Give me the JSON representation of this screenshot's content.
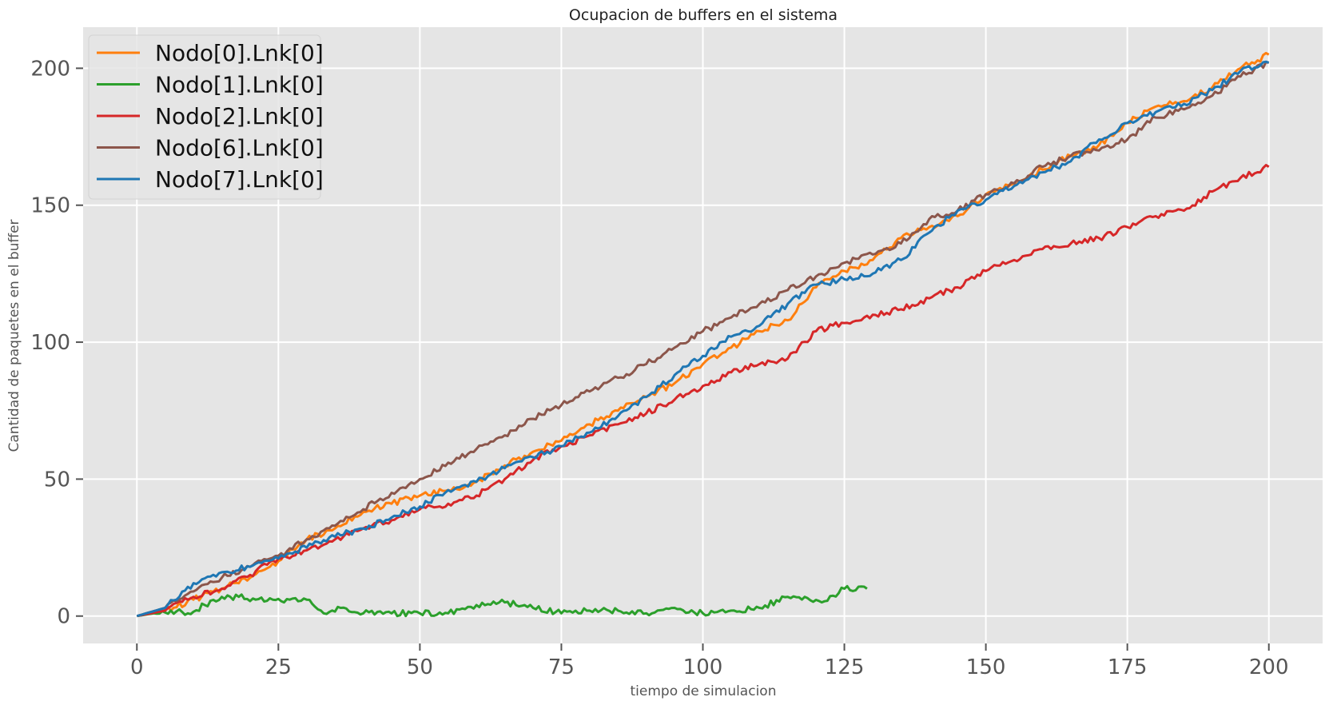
{
  "chart_data": {
    "type": "line",
    "title": "Ocupacion de buffers en el sistema",
    "xlabel": "tiempo de simulacion",
    "ylabel": "Cantidad de paquetes en el buffer",
    "xlim": [
      -9.5,
      209.5
    ],
    "ylim": [
      -10,
      215
    ],
    "xticks": [
      0,
      25,
      50,
      75,
      100,
      125,
      150,
      175,
      200
    ],
    "yticks": [
      0,
      50,
      100,
      150,
      200
    ],
    "grid": true,
    "legend_position": "upper-left",
    "colors": {
      "background": "#e5e5e5",
      "grid": "#ffffff"
    },
    "series": [
      {
        "name": "Nodo[0].Lnk[0]",
        "color": "#ff7f0e",
        "x": [
          0,
          5,
          10,
          15,
          20,
          25,
          30,
          35,
          40,
          45,
          50,
          55,
          60,
          65,
          70,
          75,
          80,
          85,
          90,
          95,
          100,
          105,
          110,
          115,
          120,
          125,
          130,
          135,
          140,
          145,
          150,
          155,
          160,
          165,
          170,
          175,
          180,
          185,
          190,
          195,
          200
        ],
        "y": [
          0,
          2,
          6,
          10,
          14,
          20,
          28,
          32,
          38,
          41,
          44,
          46,
          49,
          55,
          60,
          64,
          70,
          75,
          80,
          85,
          92,
          98,
          104,
          108,
          120,
          126,
          130,
          138,
          142,
          146,
          154,
          158,
          163,
          168,
          172,
          180,
          186,
          188,
          193,
          200,
          205
        ]
      },
      {
        "name": "Nodo[1].Lnk[0]",
        "color": "#2ca02c",
        "x": [
          0,
          3,
          6,
          9,
          12,
          15,
          18,
          21,
          24,
          27,
          30,
          33,
          36,
          40,
          45,
          50,
          55,
          60,
          65,
          70,
          75,
          80,
          85,
          90,
          95,
          100,
          105,
          110,
          115,
          118,
          121,
          125,
          129
        ],
        "y": [
          0,
          1,
          2,
          1,
          4,
          7,
          7,
          6,
          6,
          6,
          6,
          1,
          3,
          1,
          1,
          1,
          1,
          4,
          5,
          3,
          1,
          2,
          2,
          1,
          3,
          1,
          2,
          3,
          7,
          7,
          5,
          10,
          10
        ]
      },
      {
        "name": "Nodo[2].Lnk[0]",
        "color": "#d62728",
        "x": [
          0,
          5,
          10,
          15,
          20,
          25,
          30,
          35,
          40,
          45,
          50,
          55,
          60,
          65,
          70,
          75,
          80,
          85,
          90,
          95,
          100,
          105,
          110,
          115,
          120,
          125,
          130,
          135,
          140,
          145,
          150,
          155,
          160,
          165,
          170,
          175,
          180,
          185,
          190,
          195,
          200
        ],
        "y": [
          0,
          2,
          7,
          10,
          15,
          21,
          24,
          28,
          32,
          35,
          39,
          41,
          44,
          50,
          57,
          62,
          66,
          70,
          74,
          79,
          84,
          89,
          92,
          94,
          104,
          107,
          110,
          112,
          116,
          120,
          126,
          130,
          134,
          136,
          138,
          142,
          146,
          148,
          155,
          160,
          164
        ]
      },
      {
        "name": "Nodo[6].Lnk[0]",
        "color": "#8c564b",
        "x": [
          0,
          5,
          10,
          15,
          20,
          25,
          30,
          35,
          40,
          45,
          50,
          55,
          60,
          65,
          70,
          75,
          80,
          85,
          90,
          95,
          100,
          105,
          110,
          115,
          120,
          125,
          130,
          135,
          140,
          145,
          150,
          155,
          160,
          165,
          170,
          175,
          180,
          185,
          190,
          195,
          200
        ],
        "y": [
          0,
          3,
          9,
          14,
          18,
          22,
          28,
          33,
          39,
          45,
          50,
          56,
          61,
          66,
          72,
          77,
          82,
          87,
          92,
          98,
          104,
          109,
          114,
          119,
          124,
          129,
          132,
          136,
          145,
          148,
          154,
          158,
          164,
          168,
          170,
          174,
          182,
          185,
          190,
          197,
          202
        ]
      },
      {
        "name": "Nodo[7].Lnk[0]",
        "color": "#1f77b4",
        "x": [
          0,
          5,
          10,
          15,
          20,
          25,
          30,
          35,
          40,
          45,
          50,
          55,
          60,
          65,
          70,
          75,
          80,
          85,
          90,
          95,
          100,
          105,
          110,
          115,
          120,
          125,
          130,
          135,
          140,
          145,
          150,
          155,
          160,
          165,
          170,
          175,
          180,
          185,
          190,
          195,
          200
        ],
        "y": [
          0,
          3,
          12,
          16,
          18,
          21,
          25,
          29,
          32,
          36,
          40,
          46,
          49,
          54,
          58,
          62,
          67,
          73,
          80,
          88,
          95,
          102,
          106,
          114,
          121,
          123,
          125,
          130,
          140,
          148,
          152,
          157,
          162,
          166,
          174,
          180,
          184,
          187,
          192,
          199,
          202
        ]
      }
    ]
  }
}
